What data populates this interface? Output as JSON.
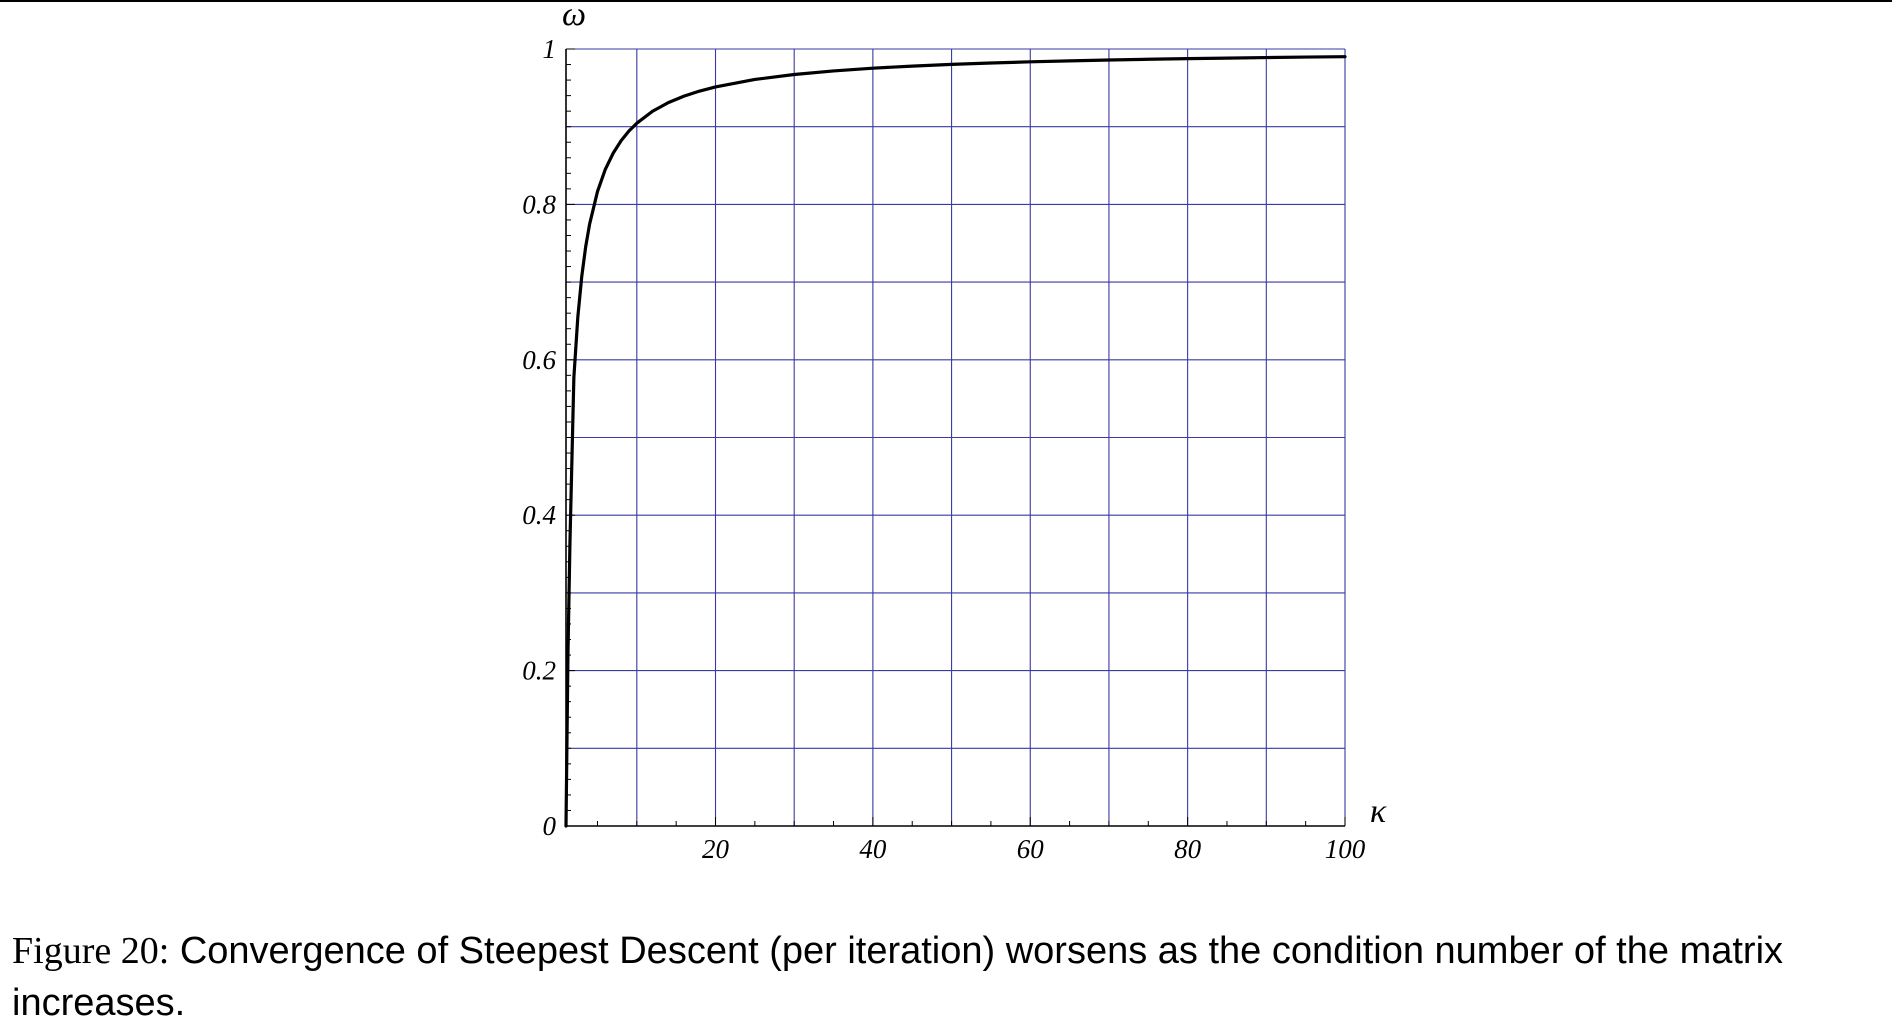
{
  "chart_data": {
    "type": "line",
    "xlabel": "κ",
    "ylabel": "ω",
    "xlim": [
      1,
      100
    ],
    "ylim": [
      0,
      1
    ],
    "x_ticks": [
      {
        "value": 20,
        "label": "20"
      },
      {
        "value": 40,
        "label": "40"
      },
      {
        "value": 60,
        "label": "60"
      },
      {
        "value": 80,
        "label": "80"
      },
      {
        "value": 100,
        "label": "100"
      }
    ],
    "y_ticks": [
      {
        "value": 0,
        "label": "0"
      },
      {
        "value": 0.2,
        "label": "0.2"
      },
      {
        "value": 0.4,
        "label": "0.4"
      },
      {
        "value": 0.6,
        "label": "0.6"
      },
      {
        "value": 0.8,
        "label": "0.8"
      },
      {
        "value": 1,
        "label": "1"
      }
    ],
    "grid": true,
    "grid_x_step": 10,
    "grid_y_step": 0.1,
    "grid_color": "#3a3aa0",
    "line_color": "#000000",
    "series": [
      {
        "x": [
          1,
          1.25,
          1.5,
          2,
          2.5,
          3,
          3.5,
          4,
          5,
          6,
          7,
          8,
          9,
          10,
          12,
          14,
          16,
          18,
          20,
          25,
          30,
          35,
          40,
          45,
          50,
          55,
          60,
          65,
          70,
          75,
          80,
          85,
          90,
          95,
          100
        ],
        "y": [
          0,
          0.2222,
          0.3636,
          0.5774,
          0.6547,
          0.7071,
          0.7454,
          0.7746,
          0.8165,
          0.8452,
          0.866,
          0.8819,
          0.8944,
          0.9045,
          0.9199,
          0.931,
          0.9393,
          0.9459,
          0.9512,
          0.9608,
          0.9672,
          0.9718,
          0.9753,
          0.978,
          0.9802,
          0.982,
          0.9835,
          0.9847,
          0.9858,
          0.9868,
          0.9876,
          0.9883,
          0.989,
          0.9896,
          0.9901
        ]
      }
    ]
  },
  "caption": {
    "figure_number": "Figure 20:",
    "text": "Convergence of Steepest Descent (per iteration) worsens as the condition number of the matrix increases."
  }
}
